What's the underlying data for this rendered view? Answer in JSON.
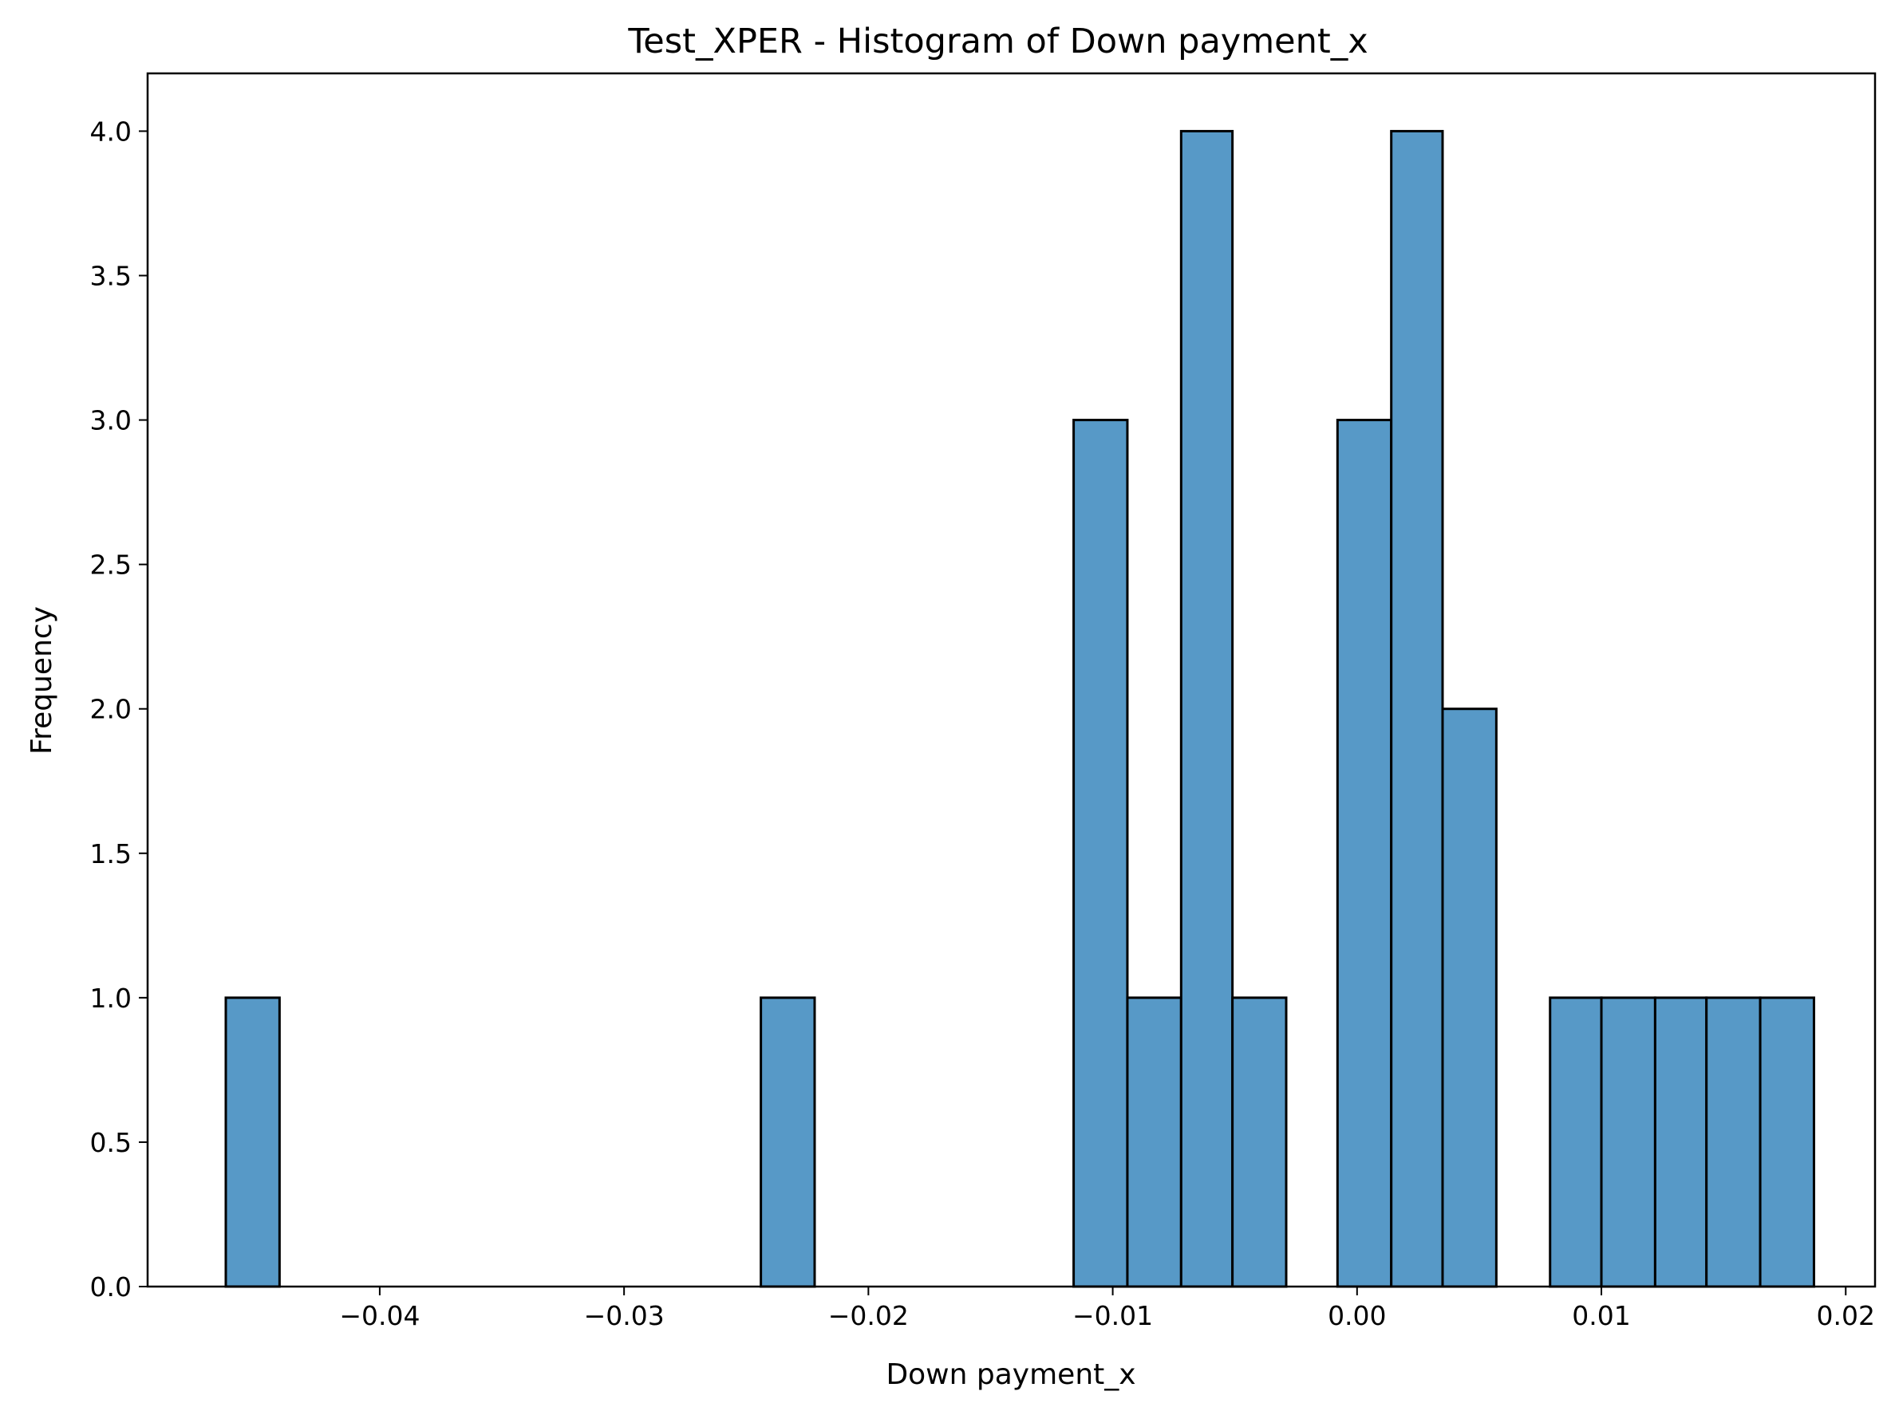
{
  "chart_data": {
    "type": "bar",
    "title": "Test_XPER - Histogram of Down payment_x",
    "xlabel": "Down payment_x",
    "ylabel": "Frequency",
    "xlim": [
      -0.0495,
      0.0212
    ],
    "ylim": [
      0,
      4.2
    ],
    "xticks": [
      {
        "value": -0.04,
        "label": "−0.04"
      },
      {
        "value": -0.03,
        "label": "−0.03"
      },
      {
        "value": -0.02,
        "label": "−0.02"
      },
      {
        "value": -0.01,
        "label": "−0.01"
      },
      {
        "value": 0.0,
        "label": "0.00"
      },
      {
        "value": 0.01,
        "label": "0.01"
      },
      {
        "value": 0.02,
        "label": "0.02"
      }
    ],
    "yticks": [
      {
        "value": 0.0,
        "label": "0.0"
      },
      {
        "value": 0.5,
        "label": "0.5"
      },
      {
        "value": 1.0,
        "label": "1.0"
      },
      {
        "value": 1.5,
        "label": "1.5"
      },
      {
        "value": 2.0,
        "label": "2.0"
      },
      {
        "value": 2.5,
        "label": "2.5"
      },
      {
        "value": 3.0,
        "label": "3.0"
      },
      {
        "value": 3.5,
        "label": "3.5"
      },
      {
        "value": 4.0,
        "label": "4.0"
      }
    ],
    "bins": [
      {
        "start": -0.0463,
        "end": -0.0441,
        "count": 1
      },
      {
        "start": -0.0244,
        "end": -0.0222,
        "count": 1
      },
      {
        "start": -0.0116,
        "end": -0.0094,
        "count": 3
      },
      {
        "start": -0.0094,
        "end": -0.0072,
        "count": 1
      },
      {
        "start": -0.0072,
        "end": -0.0051,
        "count": 4
      },
      {
        "start": -0.0051,
        "end": -0.0029,
        "count": 1
      },
      {
        "start": -0.0008,
        "end": 0.0014,
        "count": 3
      },
      {
        "start": 0.0014,
        "end": 0.0035,
        "count": 4
      },
      {
        "start": 0.0035,
        "end": 0.0057,
        "count": 2
      },
      {
        "start": 0.0079,
        "end": 0.01,
        "count": 1
      },
      {
        "start": 0.01,
        "end": 0.0122,
        "count": 1
      },
      {
        "start": 0.0122,
        "end": 0.0143,
        "count": 1
      },
      {
        "start": 0.0143,
        "end": 0.0165,
        "count": 1
      },
      {
        "start": 0.0165,
        "end": 0.0187,
        "count": 1
      }
    ],
    "bar_color": "#5799c7",
    "edge_color": "#000000",
    "grid": false
  }
}
